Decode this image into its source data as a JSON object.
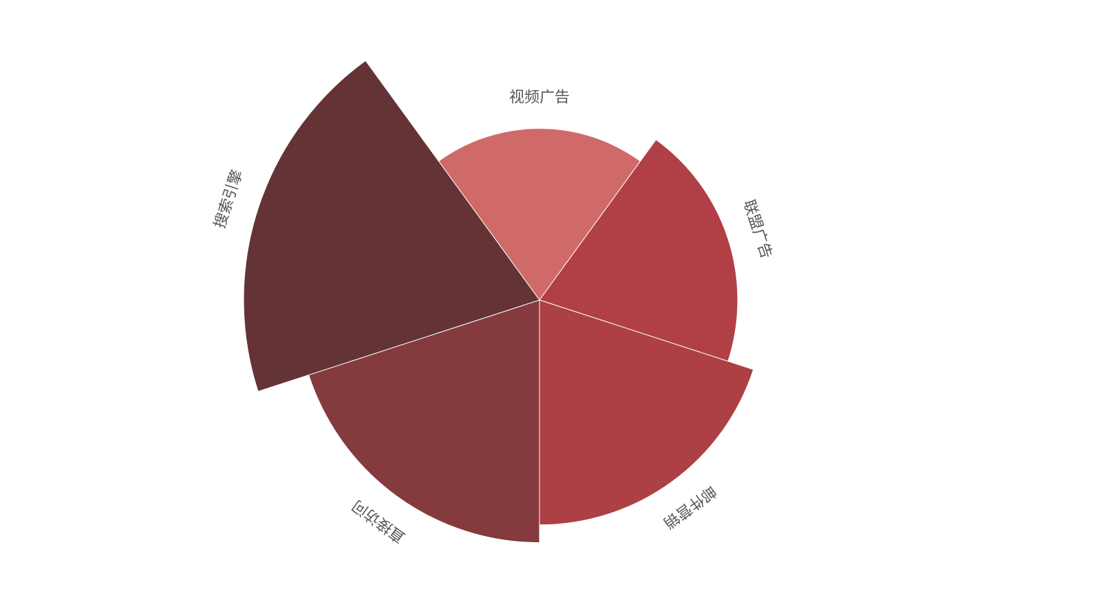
{
  "chart_data": {
    "type": "pie",
    "rose_type": "radius",
    "title": "",
    "legend": "none",
    "series": [
      {
        "data": [
          {
            "name": "视频广告",
            "value": 58,
            "color": "#d06a68"
          },
          {
            "name": "联盟广告",
            "value": 67,
            "color": "#b04045"
          },
          {
            "name": "邮件营销",
            "value": 76,
            "color": "#ad4044"
          },
          {
            "name": "直接访问",
            "value": 82,
            "color": "#853a3d"
          },
          {
            "name": "搜索引擎",
            "value": 100,
            "color": "#633336"
          }
        ]
      }
    ]
  }
}
